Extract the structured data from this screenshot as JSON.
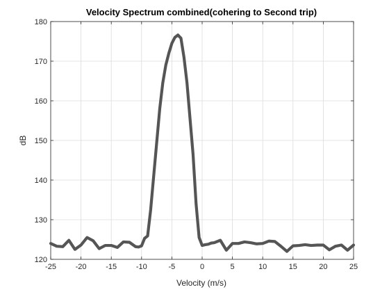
{
  "chart_data": {
    "type": "line",
    "title": "Velocity Spectrum combined(cohering to Second trip)",
    "xlabel": "Velocity (m/s)",
    "ylabel": "dB",
    "xlim": [
      -25,
      25
    ],
    "ylim": [
      120,
      180
    ],
    "xticks": [
      -25,
      -20,
      -15,
      -10,
      -5,
      0,
      5,
      10,
      15,
      20,
      25
    ],
    "yticks": [
      120,
      130,
      140,
      150,
      160,
      170,
      180
    ],
    "grid": true,
    "line_color": "#555555",
    "series": [
      {
        "x": [
          -25,
          -24,
          -23,
          -22,
          -21,
          -20,
          -19,
          -18,
          -17,
          -16,
          -15,
          -14,
          -13,
          -12,
          -11,
          -10.5,
          -10,
          -9.5,
          -9,
          -8.5,
          -8,
          -7.5,
          -7,
          -6.5,
          -6,
          -5.5,
          -5,
          -4.5,
          -4,
          -3.5,
          -3,
          -2.5,
          -2,
          -1.5,
          -1,
          -0.5,
          0,
          0.5,
          1,
          1.5,
          2,
          3,
          4,
          5,
          6,
          7,
          8,
          9,
          10,
          11,
          12,
          13,
          14,
          15,
          16,
          17,
          18,
          19,
          20,
          21,
          22,
          23,
          24,
          25
        ],
        "y": [
          124,
          123.3,
          123.2,
          124.8,
          122.5,
          123.6,
          125.5,
          124.7,
          122.7,
          123.5,
          123.5,
          123.0,
          124.4,
          124.3,
          123.2,
          123.1,
          123.4,
          125.3,
          125.9,
          132.5,
          141,
          149.5,
          158,
          164.5,
          169,
          172,
          174.5,
          176,
          176.6,
          175.8,
          171,
          164.5,
          155.5,
          146.5,
          134,
          125.5,
          123.5,
          123.7,
          123.8,
          124.1,
          124.2,
          124.8,
          122.3,
          124.0,
          124.0,
          124.4,
          124.2,
          123.9,
          124.0,
          124.6,
          124.5,
          123.3,
          122.0,
          123.4,
          123.5,
          123.7,
          123.5,
          123.6,
          123.6,
          122.4,
          123.3,
          123.6,
          122.3,
          123.6
        ]
      }
    ]
  }
}
